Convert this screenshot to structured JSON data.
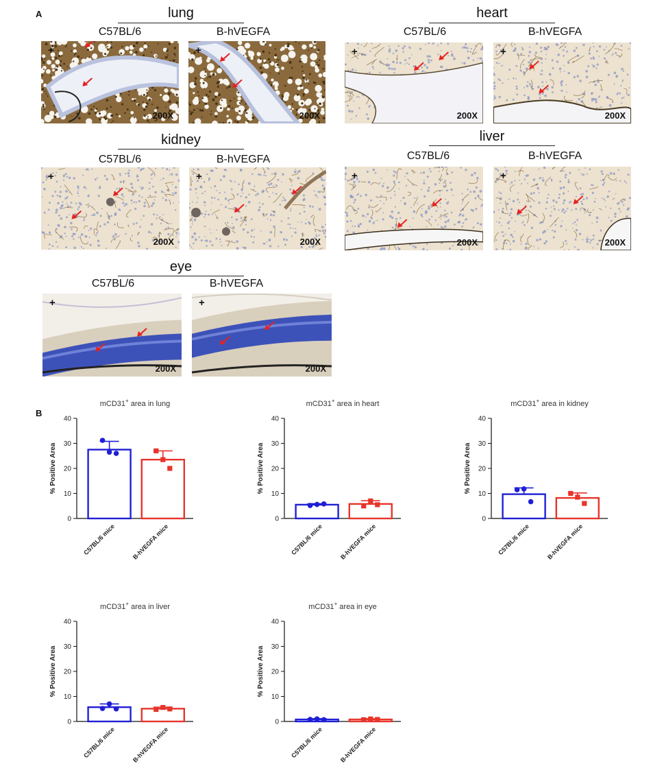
{
  "panel_a": {
    "label": "A",
    "magnification": "200X",
    "sign": "+",
    "organs": [
      {
        "name": "lung",
        "left": "C57BL/6",
        "right": "B-hVEGFA"
      },
      {
        "name": "heart",
        "left": "C57BL/6",
        "right": "B-hVEGFA"
      },
      {
        "name": "kidney",
        "left": "C57BL/6",
        "right": "B-hVEGFA"
      },
      {
        "name": "liver",
        "left": "C57BL/6",
        "right": "B-hVEGFA"
      },
      {
        "name": "eye",
        "left": "C57BL/6",
        "right": "B-hVEGFA"
      }
    ]
  },
  "panel_b": {
    "label": "B"
  },
  "colors": {
    "c57": "#1f1fd6",
    "hvegfa": "#e8342b",
    "arrow": "#e52222"
  },
  "chart_data": [
    {
      "type": "bar",
      "title_main": "mCD31",
      "title_sup": "+",
      "title_rest": " area in lung",
      "categories": [
        "C57BL/6 mice",
        "B-hVEGFA mice"
      ],
      "ylabel": "% Positive Area",
      "ylim": [
        0,
        40
      ],
      "yticks": [
        0,
        10,
        20,
        30,
        40
      ],
      "values": [
        27.5,
        23.5
      ],
      "errors": [
        3.3,
        3.5
      ],
      "points": [
        [
          31.2,
          26.5,
          26.0
        ],
        [
          27.0,
          23.5,
          20.0
        ]
      ]
    },
    {
      "type": "bar",
      "title_main": "mCD31",
      "title_sup": "+",
      "title_rest": " area in heart",
      "categories": [
        "C57BL/6 mice",
        "B-hVEGFA mice"
      ],
      "ylabel": "% Positive Area",
      "ylim": [
        0,
        40
      ],
      "yticks": [
        0,
        10,
        20,
        30,
        40
      ],
      "values": [
        5.5,
        5.8
      ],
      "errors": [
        0.4,
        1.3
      ],
      "points": [
        [
          5.2,
          5.6,
          5.8
        ],
        [
          5.0,
          7.0,
          5.5
        ]
      ]
    },
    {
      "type": "bar",
      "title_main": "mCD31",
      "title_sup": "+",
      "title_rest": " area in kidney",
      "categories": [
        "C57BL/6 mice",
        "B-hVEGFA mice"
      ],
      "ylabel": "% Positive Area",
      "ylim": [
        0,
        40
      ],
      "yticks": [
        0,
        10,
        20,
        30,
        40
      ],
      "values": [
        9.7,
        8.2
      ],
      "errors": [
        2.5,
        2.0
      ],
      "points": [
        [
          11.5,
          11.8,
          6.7
        ],
        [
          10.0,
          8.5,
          6.0
        ]
      ]
    },
    {
      "type": "bar",
      "title_main": "mCD31",
      "title_sup": "+",
      "title_rest": " area in liver",
      "categories": [
        "C57BL/6 mice",
        "B-hVEGFA mice"
      ],
      "ylabel": "% Positive Area",
      "ylim": [
        0,
        40
      ],
      "yticks": [
        0,
        10,
        20,
        30,
        40
      ],
      "values": [
        5.7,
        5.1
      ],
      "errors": [
        1.3,
        0.6
      ],
      "points": [
        [
          5.2,
          7.0,
          5.0
        ],
        [
          4.8,
          5.6,
          5.0
        ]
      ]
    },
    {
      "type": "bar",
      "title_main": "mCD31",
      "title_sup": "+",
      "title_rest": " area in eye",
      "categories": [
        "C57BL/6 mice",
        "B-hVEGFA mice"
      ],
      "ylabel": "% Positive Area",
      "ylim": [
        0,
        40
      ],
      "yticks": [
        0,
        10,
        20,
        30,
        40
      ],
      "values": [
        0.8,
        0.8
      ],
      "errors": [
        0.3,
        0.3
      ],
      "points": [
        [
          0.8,
          1.0,
          0.7
        ],
        [
          0.7,
          1.0,
          0.8
        ]
      ]
    }
  ]
}
